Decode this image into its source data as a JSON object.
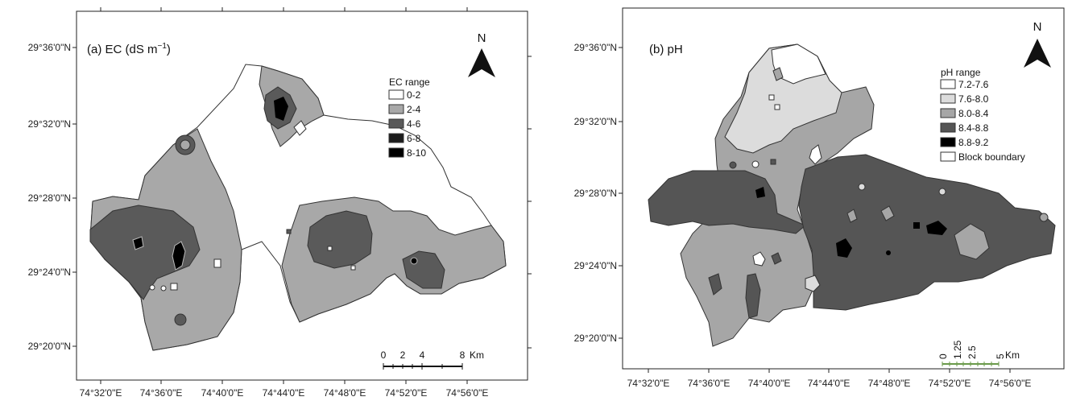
{
  "panel_a": {
    "title_main": "(a) EC (dS m",
    "title_exp": "−1",
    "title_close": ")",
    "north": "N",
    "legend_title": "EC range",
    "legend": [
      {
        "label": "0-2",
        "color": "#ffffff"
      },
      {
        "label": "2-4",
        "color": "#a8a8a8"
      },
      {
        "label": "4-6",
        "color": "#5a5a5a"
      },
      {
        "label": "6-8",
        "color": "#1c1c1c"
      },
      {
        "label": "8-10",
        "color": "#000000"
      }
    ],
    "lat_labels": [
      "29°36'0\"N",
      "29°32'0\"N",
      "29°28'0\"N",
      "29°24'0\"N",
      "29°20'0\"N"
    ],
    "lon_labels": [
      "74°32'0\"E",
      "74°36'0\"E",
      "74°40'0\"E",
      "74°44'0\"E",
      "74°48'0\"E",
      "74°52'0\"E",
      "74°56'0\"E"
    ],
    "scale_ticks": [
      "0",
      "2",
      "4",
      "8"
    ],
    "scale_unit": "Km"
  },
  "panel_b": {
    "title": "(b) pH",
    "north": "N",
    "legend_title": "pH range",
    "legend": [
      {
        "label": "7.2-7.6",
        "color": "#ffffff"
      },
      {
        "label": "7.6-8.0",
        "color": "#dcdcdc"
      },
      {
        "label": "8.0-8.4",
        "color": "#a6a6a6"
      },
      {
        "label": "8.4-8.8",
        "color": "#555555"
      },
      {
        "label": "8.8-9.2",
        "color": "#000000"
      },
      {
        "label": "Block boundary",
        "color": "#ffffff"
      }
    ],
    "lat_labels": [
      "29°36'0\"N",
      "29°32'0\"N",
      "29°28'0\"N",
      "29°24'0\"N",
      "29°20'0\"N"
    ],
    "lon_labels": [
      "74°32'0\"E",
      "74°36'0\"E",
      "74°40'0\"E",
      "74°44'0\"E",
      "74°48'0\"E",
      "74°52'0\"E",
      "74°56'0\"E"
    ],
    "scale_ticks": [
      "0",
      "1.25",
      "2.5",
      "5"
    ],
    "scale_unit": "Km"
  }
}
